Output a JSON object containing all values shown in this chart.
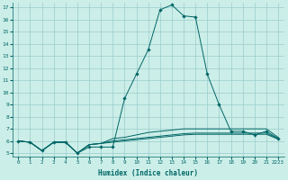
{
  "xlabel": "Humidex (Indice chaleur)",
  "bg_color": "#cceee8",
  "line_color": "#006666",
  "grid_color": "#99cccc",
  "ylim": [
    5,
    17
  ],
  "yticks": [
    5,
    6,
    7,
    8,
    9,
    10,
    11,
    12,
    13,
    14,
    15,
    16,
    17
  ],
  "series_main": [
    6.0,
    5.9,
    5.2,
    5.9,
    5.9,
    5.0,
    5.5,
    5.5,
    5.5,
    9.5,
    11.5,
    13.5,
    16.8,
    17.2,
    16.3,
    16.2,
    11.5,
    9.0,
    6.8,
    6.8,
    6.5,
    6.8,
    6.2
  ],
  "series2": [
    6.0,
    5.9,
    5.2,
    5.9,
    5.9,
    5.0,
    5.7,
    5.8,
    5.9,
    6.0,
    6.1,
    6.2,
    6.3,
    6.4,
    6.5,
    6.55,
    6.55,
    6.55,
    6.55,
    6.55,
    6.55,
    6.55,
    6.15
  ],
  "series3": [
    6.0,
    5.9,
    5.2,
    5.9,
    5.9,
    5.0,
    5.7,
    5.8,
    6.0,
    6.1,
    6.2,
    6.3,
    6.4,
    6.5,
    6.6,
    6.65,
    6.65,
    6.65,
    6.65,
    6.65,
    6.65,
    6.65,
    6.2
  ],
  "series4": [
    6.0,
    5.9,
    5.2,
    5.9,
    5.9,
    5.0,
    5.7,
    5.8,
    6.2,
    6.3,
    6.5,
    6.7,
    6.8,
    6.9,
    7.0,
    7.0,
    7.0,
    7.0,
    7.0,
    7.0,
    7.0,
    7.0,
    6.3
  ],
  "xtick_labels": [
    "0",
    "1",
    "2",
    "3",
    "4",
    "5",
    "6",
    "7",
    "8",
    "9",
    "10",
    "11",
    "12",
    "13",
    "14",
    "15",
    "16",
    "17",
    "18",
    "19",
    "20",
    "21",
    "2223"
  ]
}
